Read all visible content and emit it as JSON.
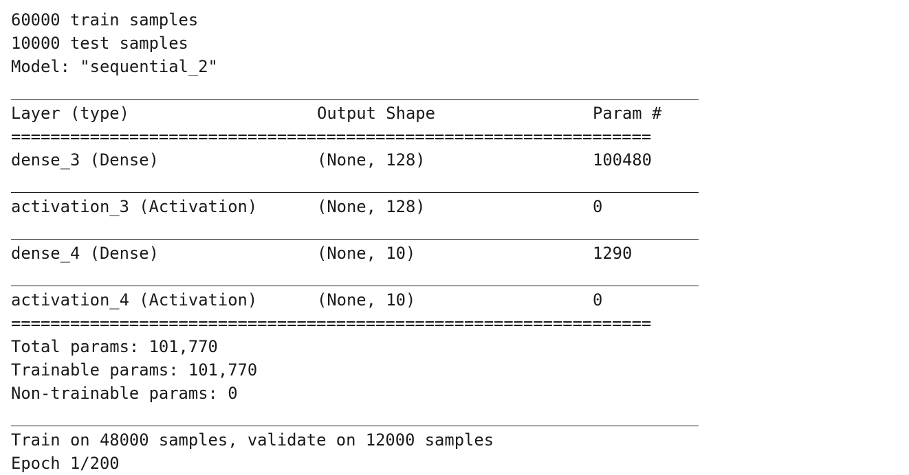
{
  "output": {
    "train_samples": "60000 train samples",
    "test_samples": "10000 test samples",
    "model_line": "Model: \"sequential_2\"",
    "header": {
      "layer": "Layer (type)",
      "output_shape": "Output Shape",
      "params": "Param #"
    },
    "double_rule": "=================================================================",
    "layers": [
      {
        "layer": "dense_3 (Dense)",
        "output_shape": "(None, 128)",
        "params": "100480"
      },
      {
        "layer": "activation_3 (Activation)",
        "output_shape": "(None, 128)",
        "params": "0"
      },
      {
        "layer": "dense_4 (Dense)",
        "output_shape": "(None, 10)",
        "params": "1290"
      },
      {
        "layer": "activation_4 (Activation)",
        "output_shape": "(None, 10)",
        "params": "0"
      }
    ],
    "total_params": "Total params: 101,770",
    "trainable_params": "Trainable params: 101,770",
    "non_trainable_params": "Non-trainable params: 0",
    "train_info": "Train on 48000 samples, validate on 12000 samples",
    "epoch_line": "Epoch 1/200"
  }
}
